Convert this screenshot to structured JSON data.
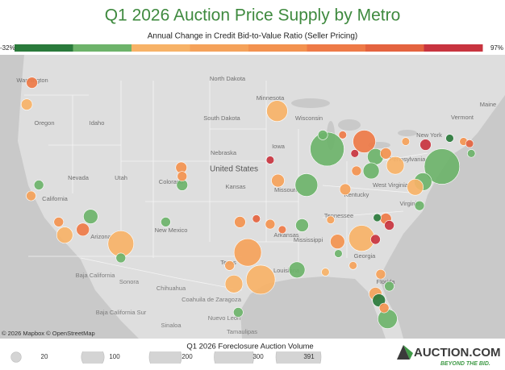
{
  "chart_data": {
    "type": "bubble-map",
    "title": "Q1 2026 Auction Price Supply by Metro",
    "subtitle": "Annual Change in Credit Bid-to-Value Ratio (Seller Pricing)",
    "color_scale": {
      "range": [
        {
          "value": -32,
          "label": "-32%"
        },
        {
          "value": 97,
          "label": "97%"
        }
      ],
      "colors": [
        "#2a7a3b",
        "#6db36a",
        "#f7b267",
        "#f5a25a",
        "#f3924f",
        "#ee7a47",
        "#e4633f",
        "#c8343f"
      ]
    },
    "attribution": "© 2026 Mapbox © OpenStreetMap",
    "size_legend": {
      "title": "Q1 2026 Foreclosure Auction Volume",
      "values": [
        20,
        100,
        200,
        300,
        391
      ]
    },
    "map_labels": [
      "Washington",
      "Oregon",
      "Idaho",
      "North Dakota",
      "South Dakota",
      "Minnesota",
      "Wisconsin",
      "Nebraska",
      "Iowa",
      "Nevada",
      "Utah",
      "Colorado",
      "United States",
      "Kansas",
      "Missouri",
      "California",
      "Arizona",
      "New Mexico",
      "Texas",
      "Arkansas",
      "Mississippi",
      "Louisiana",
      "Tennessee",
      "Kentucky",
      "West Virginia",
      "Virginia",
      "Pennsylvania",
      "New York",
      "Vermont",
      "Maine",
      "Georgia",
      "Florida",
      "Baja California",
      "Sonora",
      "Chihuahua",
      "Baja California Sur",
      "Coahuila de Zaragoza",
      "Sinaloa",
      "Nuevo León",
      "Tamaulipas"
    ],
    "bubbles": {
      "lon": [
        -74.8,
        -88.1,
        -95.8,
        -97.3,
        -112.0,
        -84.1,
        -83.8,
        -90.5,
        -93.9,
        -81.1,
        -98.9,
        -77.0,
        -80.2,
        -118.5,
        -82.5,
        -83.0,
        -77.9,
        -91.6,
        -115.5,
        -86.9,
        -116.4,
        -91.0,
        -93.8,
        -82.5,
        -82.1,
        -122.3,
        -122.9,
        -105.0,
        -104.9,
        -98.2,
        -86.0,
        -81.3,
        -76.7,
        -81.3,
        -121.5,
        -122.4,
        -119.2,
        -112.0,
        -104.9,
        -106.8,
        -94.7,
        -99.4,
        -98.4,
        -88.6,
        -84.7,
        -77.4,
        -80.9,
        -82.5,
        -81.9,
        -80.9,
        -81.5,
        -96.3,
        -93.3,
        -94.7,
        -86.3,
        -84.9,
        -79.0,
        -73.9,
        -72.3,
        -71.4,
        -71.6,
        -82.3,
        -87.7,
        -86.8,
        -85.1,
        -88.3
      ],
      "lat": [
        39.7,
        41.3,
        29.3,
        31.8,
        32.6,
        33.1,
        42.0,
        38.0,
        44.8,
        25.7,
        28.9,
        38.3,
        39.8,
        33.4,
        40.6,
        39.3,
        37.8,
        30.2,
        35.1,
        32.8,
        33.9,
        34.3,
        38.4,
        28.0,
        27.4,
        47.4,
        45.4,
        39.6,
        38.0,
        34.6,
        37.6,
        40.9,
        41.7,
        34.9,
        38.0,
        37.0,
        34.6,
        31.3,
        38.8,
        34.6,
        34.4,
        30.6,
        26.3,
        42.6,
        39.3,
        36.1,
        34.3,
        33.0,
        29.8,
        28.7,
        26.7,
        34.9,
        33.9,
        40.3,
        42.6,
        40.9,
        42.0,
        42.3,
        42.0,
        40.9,
        41.8,
        35.0,
        34.8,
        31.7,
        30.6,
        30.0
      ],
      "volume": [
        240,
        220,
        161,
        144,
        128,
        128,
        98,
        98,
        84,
        72,
        60,
        60,
        60,
        50,
        50,
        50,
        50,
        50,
        40,
        40,
        32,
        32,
        32,
        32,
        32,
        24,
        24,
        24,
        24,
        24,
        24,
        24,
        24,
        24,
        18,
        18,
        18,
        18,
        18,
        18,
        18,
        18,
        18,
        18,
        18,
        18,
        18,
        18,
        18,
        18,
        18,
        12,
        12,
        12,
        12,
        12,
        12,
        12,
        12,
        12,
        12,
        12,
        12,
        12,
        12,
        12
      ],
      "change": [
        -8,
        -8,
        10,
        25,
        10,
        10,
        60,
        -8,
        10,
        -8,
        10,
        -8,
        10,
        10,
        -8,
        -8,
        10,
        -8,
        -8,
        40,
        60,
        -8,
        25,
        25,
        -25,
        60,
        10,
        40,
        -8,
        40,
        25,
        40,
        90,
        60,
        -8,
        25,
        40,
        -8,
        40,
        -8,
        40,
        25,
        -8,
        -8,
        40,
        -8,
        90,
        90,
        25,
        -8,
        40,
        75,
        60,
        90,
        60,
        90,
        25,
        -25,
        40,
        -8,
        75,
        -25,
        25,
        -8,
        25,
        10
      ]
    }
  },
  "logo": {
    "name": "AUCTION.COM",
    "tagline": "BEYOND THE BID."
  }
}
